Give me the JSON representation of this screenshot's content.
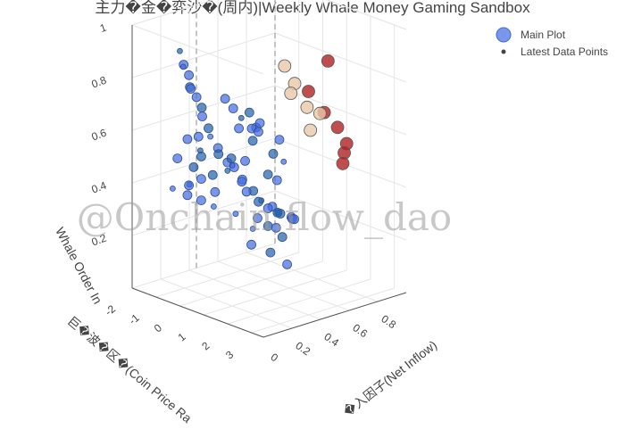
{
  "title": "主力�金�弈沙�(周内)|Weekly Whale Money Gaming Sandbox",
  "watermark": "@Onchain.flow_dao",
  "legend": {
    "main": "Main Plot",
    "latest": "Latest Data Points"
  },
  "colors": {
    "main": "#4169e1",
    "blue_dark": "#1f5fa8",
    "latest_dark": "#b22222",
    "latest_light": "#e8c8a8",
    "axis": "#444444"
  },
  "chart_data": {
    "type": "scatter3d",
    "title": "主力�金�弈沙�(周内)|Weekly Whale Money Gaming Sandbox",
    "xlabel": "�入因子(Net Inflow)",
    "ylabel": "巨�波�区�(Coin Price Ra",
    "zlabel": "Whale Order In",
    "xlim": [
      0,
      1
    ],
    "ylim": [
      -2,
      3.5
    ],
    "zlim": [
      0,
      1
    ],
    "x_ticks": [
      "0",
      "0.2",
      "0.4",
      "0.6",
      "0.8"
    ],
    "y_ticks": [
      "-2",
      "-1",
      "0",
      "1",
      "2",
      "3"
    ],
    "z_ticks": [
      "0.2",
      "0.4",
      "0.6",
      "0.8",
      "1"
    ],
    "series": [
      {
        "name": "Main Plot",
        "points": [
          {
            "x": 0.05,
            "y": -0.3,
            "z": 0.95
          },
          {
            "x": 0.06,
            "y": -0.2,
            "z": 0.9
          },
          {
            "x": 0.08,
            "y": -0.1,
            "z": 0.86
          },
          {
            "x": 0.07,
            "y": 0.0,
            "z": 0.82
          },
          {
            "x": 0.1,
            "y": 0.1,
            "z": 0.78
          },
          {
            "x": 0.09,
            "y": -0.4,
            "z": 0.88
          },
          {
            "x": 0.12,
            "y": 0.2,
            "z": 0.74
          },
          {
            "x": 0.14,
            "y": 0.1,
            "z": 0.7
          },
          {
            "x": 0.11,
            "y": -0.2,
            "z": 0.8
          },
          {
            "x": 0.15,
            "y": 0.3,
            "z": 0.66
          },
          {
            "x": 0.18,
            "y": 0.2,
            "z": 0.62
          },
          {
            "x": 0.2,
            "y": 0.4,
            "z": 0.58
          },
          {
            "x": 0.22,
            "y": 0.3,
            "z": 0.55
          },
          {
            "x": 0.25,
            "y": 0.5,
            "z": 0.52
          },
          {
            "x": 0.28,
            "y": 0.6,
            "z": 0.5
          },
          {
            "x": 0.3,
            "y": 0.2,
            "z": 0.47
          },
          {
            "x": 0.32,
            "y": 0.7,
            "z": 0.45
          },
          {
            "x": 0.35,
            "y": 0.5,
            "z": 0.43
          },
          {
            "x": 0.38,
            "y": 0.8,
            "z": 0.4
          },
          {
            "x": 0.4,
            "y": 0.4,
            "z": 0.38
          },
          {
            "x": 0.42,
            "y": 0.9,
            "z": 0.36
          },
          {
            "x": 0.45,
            "y": 0.6,
            "z": 0.34
          },
          {
            "x": 0.48,
            "y": 1.0,
            "z": 0.33
          },
          {
            "x": 0.5,
            "y": 0.7,
            "z": 0.31
          },
          {
            "x": 0.52,
            "y": 1.1,
            "z": 0.3
          },
          {
            "x": 0.55,
            "y": 0.8,
            "z": 0.29
          },
          {
            "x": 0.58,
            "y": 1.2,
            "z": 0.28
          },
          {
            "x": 0.6,
            "y": 0.5,
            "z": 0.27
          },
          {
            "x": 0.62,
            "y": 1.0,
            "z": 0.26
          },
          {
            "x": 0.65,
            "y": 0.9,
            "z": 0.25
          },
          {
            "x": 0.2,
            "y": -0.8,
            "z": 0.4
          },
          {
            "x": 0.22,
            "y": -1.0,
            "z": 0.35
          },
          {
            "x": 0.25,
            "y": -0.6,
            "z": 0.42
          },
          {
            "x": 0.18,
            "y": -0.5,
            "z": 0.48
          },
          {
            "x": 0.3,
            "y": -0.9,
            "z": 0.32
          },
          {
            "x": 0.15,
            "y": -1.2,
            "z": 0.38
          },
          {
            "x": 0.28,
            "y": -0.3,
            "z": 0.44
          },
          {
            "x": 0.33,
            "y": -0.5,
            "z": 0.36
          },
          {
            "x": 0.1,
            "y": -0.7,
            "z": 0.52
          },
          {
            "x": 0.36,
            "y": 0.0,
            "z": 0.5
          },
          {
            "x": 0.4,
            "y": -0.2,
            "z": 0.46
          },
          {
            "x": 0.44,
            "y": 0.1,
            "z": 0.48
          },
          {
            "x": 0.46,
            "y": 0.3,
            "z": 0.56
          },
          {
            "x": 0.5,
            "y": 0.2,
            "z": 0.6
          },
          {
            "x": 0.42,
            "y": 0.5,
            "z": 0.62
          },
          {
            "x": 0.38,
            "y": 0.3,
            "z": 0.66
          },
          {
            "x": 0.34,
            "y": 0.2,
            "z": 0.7
          },
          {
            "x": 0.3,
            "y": 0.1,
            "z": 0.74
          },
          {
            "x": 0.55,
            "y": 0.4,
            "z": 0.42
          },
          {
            "x": 0.58,
            "y": 0.6,
            "z": 0.4
          },
          {
            "x": 0.26,
            "y": 1.5,
            "z": 0.3
          },
          {
            "x": 0.3,
            "y": 2.0,
            "z": 0.22
          },
          {
            "x": 0.35,
            "y": 2.4,
            "z": 0.18
          },
          {
            "x": 0.2,
            "y": 1.8,
            "z": 0.26
          },
          {
            "x": 0.45,
            "y": 1.6,
            "z": 0.24
          },
          {
            "x": 0.24,
            "y": 0.9,
            "z": 0.34
          },
          {
            "x": 0.48,
            "y": -0.4,
            "z": 0.58
          },
          {
            "x": 0.52,
            "y": -0.2,
            "z": 0.64
          },
          {
            "x": 0.56,
            "y": 0.0,
            "z": 0.6
          },
          {
            "x": 0.6,
            "y": -0.3,
            "z": 0.55
          },
          {
            "x": 0.16,
            "y": -0.1,
            "z": 0.56
          },
          {
            "x": 0.12,
            "y": -0.4,
            "z": 0.6
          },
          {
            "x": 0.08,
            "y": 0.3,
            "z": 0.64
          },
          {
            "x": 0.05,
            "y": 0.6,
            "z": 0.58
          },
          {
            "x": 0.03,
            "y": 0.2,
            "z": 0.46
          },
          {
            "x": 0.07,
            "y": 1.0,
            "z": 0.4
          },
          {
            "x": 0.4,
            "y": 1.3,
            "z": 0.28
          },
          {
            "x": 0.36,
            "y": 1.1,
            "z": 0.31
          },
          {
            "x": 0.44,
            "y": 1.4,
            "z": 0.27
          },
          {
            "x": 0.62,
            "y": 0.2,
            "z": 0.48
          },
          {
            "x": 0.66,
            "y": 0.4,
            "z": 0.45
          },
          {
            "x": 0.68,
            "y": 0.1,
            "z": 0.52
          }
        ]
      },
      {
        "name": "Latest Data Points",
        "points": [
          {
            "x": 0.8,
            "y": 0.6,
            "z": 0.7
          },
          {
            "x": 0.86,
            "y": 0.9,
            "z": 0.62
          },
          {
            "x": 0.92,
            "y": 1.1,
            "z": 0.56
          },
          {
            "x": 0.95,
            "y": 1.3,
            "z": 0.5
          },
          {
            "x": 0.9,
            "y": 1.5,
            "z": 0.48
          },
          {
            "x": 0.84,
            "y": 1.8,
            "z": 0.46
          },
          {
            "x": 0.97,
            "y": 0.4,
            "z": 0.78
          },
          {
            "x": 0.7,
            "y": 0.2,
            "z": 0.8
          },
          {
            "x": 0.72,
            "y": 0.5,
            "z": 0.74
          },
          {
            "x": 0.66,
            "y": 0.7,
            "z": 0.72
          },
          {
            "x": 0.74,
            "y": 0.9,
            "z": 0.66
          },
          {
            "x": 0.78,
            "y": 1.2,
            "z": 0.64
          },
          {
            "x": 0.68,
            "y": 1.4,
            "z": 0.6
          }
        ]
      }
    ]
  }
}
